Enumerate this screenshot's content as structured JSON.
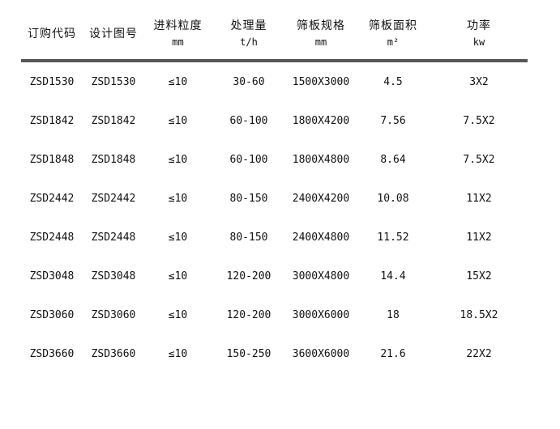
{
  "page": {
    "background": "#ffffff",
    "text_color": "#111111",
    "divider_color": "#565656"
  },
  "table": {
    "columns": [
      {
        "label": "订购代码",
        "unit": ""
      },
      {
        "label": "设计图号",
        "unit": ""
      },
      {
        "label": "进料粒度",
        "unit": "mm"
      },
      {
        "label": "处理量",
        "unit": "t/h"
      },
      {
        "label": "筛板规格",
        "unit": "mm"
      },
      {
        "label": "筛板面积",
        "unit": "m²"
      },
      {
        "label": "功率",
        "unit": "kw"
      }
    ],
    "rows": [
      [
        "ZSD1530",
        "ZSD1530",
        "≤10",
        "30-60",
        "1500X3000",
        "4.5",
        "3X2"
      ],
      [
        "ZSD1842",
        "ZSD1842",
        "≤10",
        "60-100",
        "1800X4200",
        "7.56",
        "7.5X2"
      ],
      [
        "ZSD1848",
        "ZSD1848",
        "≤10",
        "60-100",
        "1800X4800",
        "8.64",
        "7.5X2"
      ],
      [
        "ZSD2442",
        "ZSD2442",
        "≤10",
        "80-150",
        "2400X4200",
        "10.08",
        "11X2"
      ],
      [
        "ZSD2448",
        "ZSD2448",
        "≤10",
        "80-150",
        "2400X4800",
        "11.52",
        "11X2"
      ],
      [
        "ZSD3048",
        "ZSD3048",
        "≤10",
        "120-200",
        "3000X4800",
        "14.4",
        "15X2"
      ],
      [
        "ZSD3060",
        "ZSD3060",
        "≤10",
        "120-200",
        "3000X6000",
        "18",
        "18.5X2"
      ],
      [
        "ZSD3660",
        "ZSD3660",
        "≤10",
        "150-250",
        "3600X6000",
        "21.6",
        "22X2"
      ]
    ]
  }
}
